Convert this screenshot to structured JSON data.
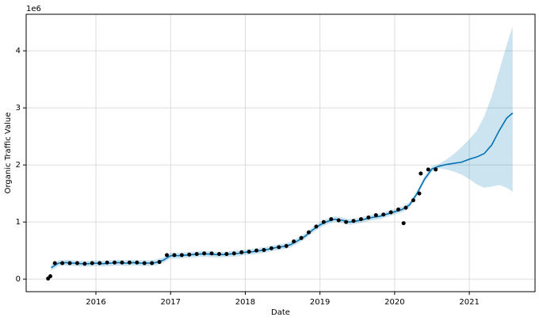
{
  "chart_data": {
    "type": "forecast",
    "offset_label": "1e6",
    "x_label": "Date",
    "y_label": "Organic Traffic Value",
    "xlim": [
      2015.066,
      2021.88
    ],
    "ylim": [
      -0.22,
      4.64
    ],
    "xticks": [
      2016,
      2017,
      2018,
      2019,
      2020,
      2021
    ],
    "yticks": [
      0,
      1,
      2,
      3,
      4
    ],
    "grid": true,
    "series": [
      {
        "type": "band",
        "color": "#0072B2",
        "x": [
          2015.4,
          2015.5,
          2015.6,
          2015.7,
          2015.8,
          2015.9,
          2016.0,
          2016.1,
          2016.2,
          2016.3,
          2016.4,
          2016.5,
          2016.6,
          2016.7,
          2016.8,
          2016.9,
          2017.0,
          2017.1,
          2017.2,
          2017.3,
          2017.4,
          2017.5,
          2017.6,
          2017.7,
          2017.8,
          2017.9,
          2018.0,
          2018.1,
          2018.2,
          2018.3,
          2018.4,
          2018.5,
          2018.6,
          2018.7,
          2018.8,
          2018.9,
          2019.0,
          2019.1,
          2019.2,
          2019.3,
          2019.4,
          2019.5,
          2019.6,
          2019.7,
          2019.8,
          2019.9,
          2020.0,
          2020.1,
          2020.2,
          2020.3,
          2020.4,
          2020.5,
          2020.6,
          2020.7,
          2020.8,
          2020.9,
          2021.0,
          2021.1,
          2021.2,
          2021.3,
          2021.4,
          2021.5,
          2021.58
        ],
        "lower": [
          0.15,
          0.23,
          0.24,
          0.23,
          0.22,
          0.22,
          0.23,
          0.22,
          0.23,
          0.24,
          0.23,
          0.24,
          0.23,
          0.23,
          0.24,
          0.28,
          0.36,
          0.36,
          0.37,
          0.38,
          0.39,
          0.39,
          0.38,
          0.38,
          0.39,
          0.4,
          0.42,
          0.43,
          0.45,
          0.47,
          0.5,
          0.52,
          0.55,
          0.62,
          0.7,
          0.81,
          0.9,
          0.96,
          1.0,
          0.98,
          0.95,
          0.97,
          1.0,
          1.03,
          1.05,
          1.09,
          1.13,
          1.17,
          1.25,
          1.45,
          1.7,
          1.88,
          1.94,
          1.92,
          1.88,
          1.83,
          1.75,
          1.66,
          1.6,
          1.62,
          1.65,
          1.6,
          1.53
        ],
        "upper": [
          0.25,
          0.33,
          0.34,
          0.33,
          0.32,
          0.32,
          0.33,
          0.32,
          0.33,
          0.34,
          0.33,
          0.34,
          0.33,
          0.33,
          0.34,
          0.38,
          0.46,
          0.46,
          0.47,
          0.48,
          0.49,
          0.49,
          0.48,
          0.48,
          0.49,
          0.5,
          0.52,
          0.53,
          0.55,
          0.57,
          0.6,
          0.62,
          0.65,
          0.72,
          0.8,
          0.91,
          1.0,
          1.06,
          1.1,
          1.08,
          1.05,
          1.07,
          1.1,
          1.13,
          1.15,
          1.19,
          1.23,
          1.27,
          1.35,
          1.55,
          1.8,
          1.98,
          2.02,
          2.1,
          2.2,
          2.32,
          2.45,
          2.6,
          2.85,
          3.2,
          3.65,
          4.1,
          4.43
        ]
      },
      {
        "type": "line",
        "color": "#0072B2",
        "x": [
          2015.4,
          2015.5,
          2015.6,
          2015.7,
          2015.8,
          2015.9,
          2016.0,
          2016.1,
          2016.2,
          2016.3,
          2016.4,
          2016.5,
          2016.6,
          2016.7,
          2016.8,
          2016.9,
          2017.0,
          2017.1,
          2017.2,
          2017.3,
          2017.4,
          2017.5,
          2017.6,
          2017.7,
          2017.8,
          2017.9,
          2018.0,
          2018.1,
          2018.2,
          2018.3,
          2018.4,
          2018.5,
          2018.6,
          2018.7,
          2018.8,
          2018.9,
          2019.0,
          2019.1,
          2019.2,
          2019.3,
          2019.4,
          2019.5,
          2019.6,
          2019.7,
          2019.8,
          2019.9,
          2020.0,
          2020.1,
          2020.2,
          2020.3,
          2020.4,
          2020.5,
          2020.6,
          2020.7,
          2020.8,
          2020.9,
          2021.0,
          2021.1,
          2021.2,
          2021.3,
          2021.4,
          2021.5,
          2021.58
        ],
        "values": [
          0.2,
          0.28,
          0.29,
          0.28,
          0.27,
          0.27,
          0.28,
          0.27,
          0.28,
          0.29,
          0.28,
          0.29,
          0.28,
          0.28,
          0.29,
          0.33,
          0.41,
          0.41,
          0.42,
          0.43,
          0.44,
          0.44,
          0.43,
          0.43,
          0.44,
          0.45,
          0.47,
          0.48,
          0.5,
          0.52,
          0.55,
          0.57,
          0.6,
          0.67,
          0.75,
          0.86,
          0.95,
          1.01,
          1.05,
          1.03,
          1.0,
          1.02,
          1.05,
          1.08,
          1.1,
          1.14,
          1.18,
          1.22,
          1.3,
          1.5,
          1.75,
          1.93,
          1.98,
          2.01,
          2.03,
          2.05,
          2.1,
          2.14,
          2.2,
          2.35,
          2.6,
          2.82,
          2.91
        ]
      },
      {
        "type": "scatter",
        "color": "#000000",
        "x": [
          2015.36,
          2015.39,
          2015.45,
          2015.55,
          2015.65,
          2015.75,
          2015.85,
          2015.95,
          2016.05,
          2016.15,
          2016.25,
          2016.35,
          2016.45,
          2016.55,
          2016.65,
          2016.75,
          2016.85,
          2016.95,
          2017.05,
          2017.15,
          2017.25,
          2017.35,
          2017.45,
          2017.55,
          2017.65,
          2017.75,
          2017.85,
          2017.95,
          2018.05,
          2018.15,
          2018.25,
          2018.35,
          2018.45,
          2018.55,
          2018.65,
          2018.75,
          2018.85,
          2018.95,
          2019.05,
          2019.15,
          2019.25,
          2019.35,
          2019.45,
          2019.55,
          2019.65,
          2019.75,
          2019.85,
          2019.95,
          2020.05,
          2020.12,
          2020.15,
          2020.25,
          2020.33,
          2020.35,
          2020.45,
          2020.55
        ],
        "values": [
          0.01,
          0.05,
          0.28,
          0.28,
          0.28,
          0.28,
          0.27,
          0.28,
          0.28,
          0.29,
          0.29,
          0.29,
          0.29,
          0.29,
          0.28,
          0.28,
          0.3,
          0.42,
          0.42,
          0.42,
          0.43,
          0.44,
          0.45,
          0.45,
          0.44,
          0.44,
          0.45,
          0.47,
          0.48,
          0.5,
          0.51,
          0.54,
          0.56,
          0.58,
          0.66,
          0.72,
          0.82,
          0.92,
          1.0,
          1.05,
          1.03,
          1.0,
          1.02,
          1.05,
          1.08,
          1.12,
          1.13,
          1.17,
          1.22,
          0.98,
          1.25,
          1.38,
          1.5,
          1.85,
          1.92,
          1.92
        ]
      }
    ]
  }
}
